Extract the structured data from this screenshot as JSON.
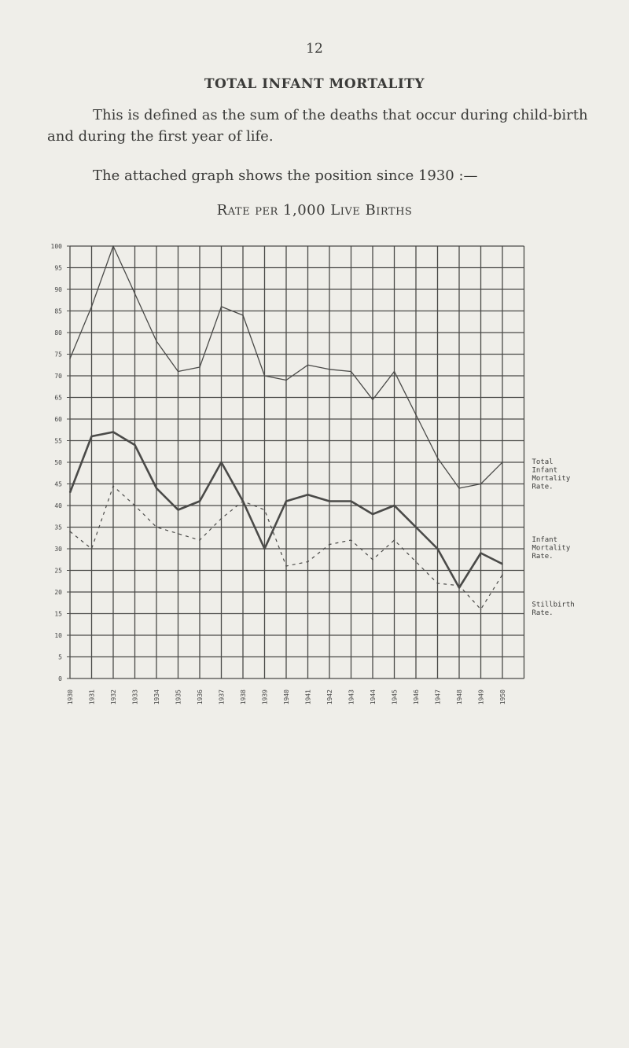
{
  "page": {
    "number": "12",
    "heading": "TOTAL INFANT MORTALITY",
    "paragraph1": "This is defined as the sum of the deaths that occur during child-birth and during the first year of life.",
    "paragraph2": "The attached graph shows the position since 1930 :—"
  },
  "chart_data": {
    "type": "line",
    "title": "Rate per 1,000 Live Births",
    "x": [
      "1930",
      "1931",
      "1932",
      "1933",
      "1934",
      "1935",
      "1936",
      "1937",
      "1938",
      "1939",
      "1940",
      "1941",
      "1942",
      "1943",
      "1944",
      "1945",
      "1946",
      "1947",
      "1948",
      "1949",
      "1950"
    ],
    "ylim": [
      0,
      100
    ],
    "yticks": [
      0,
      5,
      10,
      15,
      20,
      25,
      30,
      35,
      40,
      45,
      50,
      55,
      60,
      65,
      70,
      75,
      80,
      85,
      90,
      95,
      100
    ],
    "grid": true,
    "legend_placement": "right",
    "series": [
      {
        "name": "Total Infant Mortality Rate.",
        "style": "thin-solid",
        "values": [
          74,
          86,
          100,
          89,
          78,
          71,
          72,
          86,
          84,
          70,
          69,
          72.5,
          71.5,
          71,
          64.5,
          71,
          61,
          51,
          44,
          45,
          50
        ]
      },
      {
        "name": "Infant Mortality Rate.",
        "style": "thick-solid",
        "values": [
          43,
          56,
          57,
          54,
          44,
          39,
          41,
          50,
          41,
          30,
          41,
          42.5,
          41,
          41,
          38,
          40,
          35,
          30,
          21,
          29,
          26.5
        ]
      },
      {
        "name": "Stillbirth Rate.",
        "style": "dashed",
        "values": [
          34,
          30,
          44.5,
          40,
          35,
          33.5,
          32,
          37,
          41,
          39,
          26,
          27,
          31,
          32,
          27.5,
          32,
          27,
          22,
          21.5,
          16,
          24
        ]
      }
    ],
    "legend_entries": [
      {
        "text": "Total\nInfant\nMortality\nRate.",
        "value_anchor": 50
      },
      {
        "text": "Infant\nMortality\nRate.",
        "value_anchor": 32
      },
      {
        "text": "Stillbirth\nRate.",
        "value_anchor": 17
      }
    ],
    "colors": {
      "line": "#4a4a48",
      "grid": "#4a4a48",
      "paper": "#efeee9"
    }
  }
}
